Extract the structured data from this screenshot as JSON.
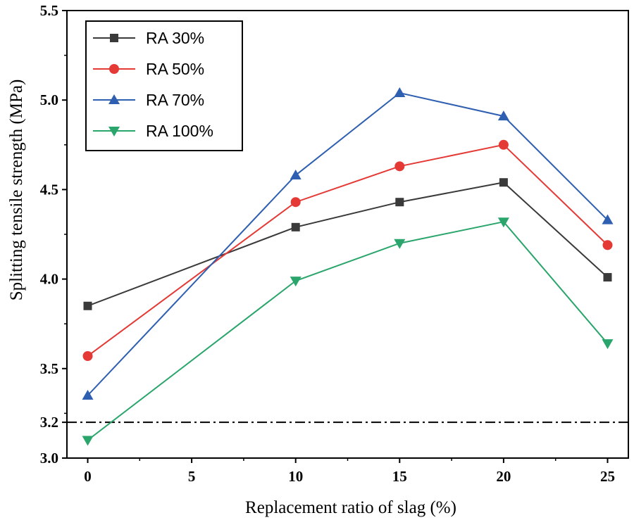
{
  "chart_data": {
    "type": "line",
    "title": "",
    "xlabel": "Replacement ratio of slag (%)",
    "ylabel": "Splitting tensile strength (MPa)",
    "xlim": [
      -1,
      26
    ],
    "ylim": [
      3.0,
      5.5
    ],
    "x": [
      0,
      10,
      15,
      20,
      25
    ],
    "xticks": [
      0,
      5,
      10,
      15,
      20,
      25
    ],
    "xtick_labels": [
      "0",
      "5",
      "10",
      "15",
      "20",
      "25"
    ],
    "yticks": [
      3.0,
      3.2,
      3.5,
      4.0,
      4.5,
      5.0,
      5.5
    ],
    "ytick_labels": [
      "3.0",
      "3.2",
      "3.5",
      "4.0",
      "4.5",
      "5.0",
      "5.5"
    ],
    "reference_line": {
      "y": 3.2,
      "style": "dash-dot",
      "color": "#000000"
    },
    "legend_position": "top-left",
    "series": [
      {
        "name": "RA 30%",
        "marker": "square",
        "color": "#3a3a3a",
        "values": [
          3.85,
          4.29,
          4.43,
          4.54,
          4.01
        ]
      },
      {
        "name": "RA 50%",
        "marker": "circle",
        "color": "#e53935",
        "values": [
          3.57,
          4.43,
          4.63,
          4.75,
          4.19
        ]
      },
      {
        "name": "RA 70%",
        "marker": "triangle-up",
        "color": "#2f5fb0",
        "values": [
          3.35,
          4.58,
          5.04,
          4.91,
          4.33
        ]
      },
      {
        "name": "RA 100%",
        "marker": "triangle-down",
        "color": "#2aa56b",
        "values": [
          3.1,
          3.99,
          4.2,
          4.32,
          3.64
        ]
      }
    ]
  }
}
